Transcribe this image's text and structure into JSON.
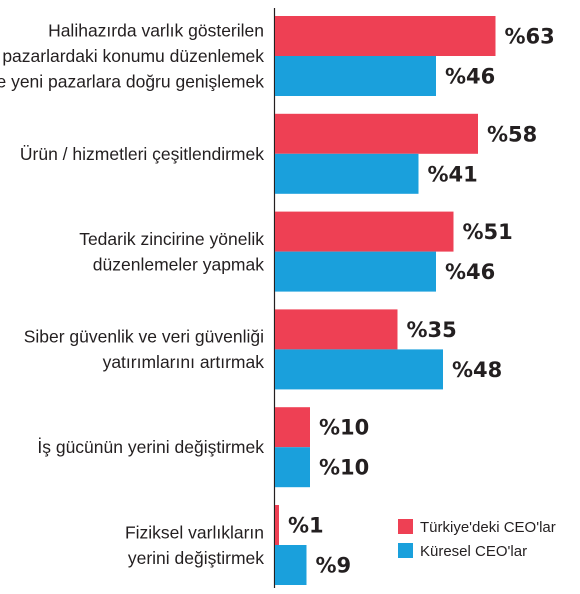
{
  "chart_data": {
    "type": "bar",
    "orientation": "horizontal",
    "categories": [
      [
        "Halihazırda varlık gösterilen",
        "pazarlardaki konumu düzenlemek",
        "ve yeni pazarlara doğru genişlemek"
      ],
      [
        "Ürün / hizmetleri çeşitlendirmek"
      ],
      [
        "Tedarik zincirine yönelik",
        "düzenlemeler yapmak"
      ],
      [
        "Siber güvenlik ve veri güvenliği",
        "yatırımlarını artırmak"
      ],
      [
        "İş gücünün yerini değiştirmek"
      ],
      [
        "Fiziksel varlıkların",
        "yerini değiştirmek"
      ]
    ],
    "series": [
      {
        "name": "Türkiye'deki CEO'lar",
        "color": "#ee4054",
        "values": [
          63,
          58,
          51,
          35,
          10,
          1
        ],
        "labels": [
          "%63",
          "%58",
          "%51",
          "%35",
          "%10",
          "%1"
        ]
      },
      {
        "name": "Küresel CEO'lar",
        "color": "#1aa0dc",
        "values": [
          46,
          41,
          46,
          48,
          10,
          9
        ],
        "labels": [
          "%46",
          "%41",
          "%46",
          "%48",
          "%10",
          "%9"
        ]
      }
    ],
    "xlim": [
      0,
      100
    ],
    "grid": false,
    "legend_position": "bottom-right"
  }
}
